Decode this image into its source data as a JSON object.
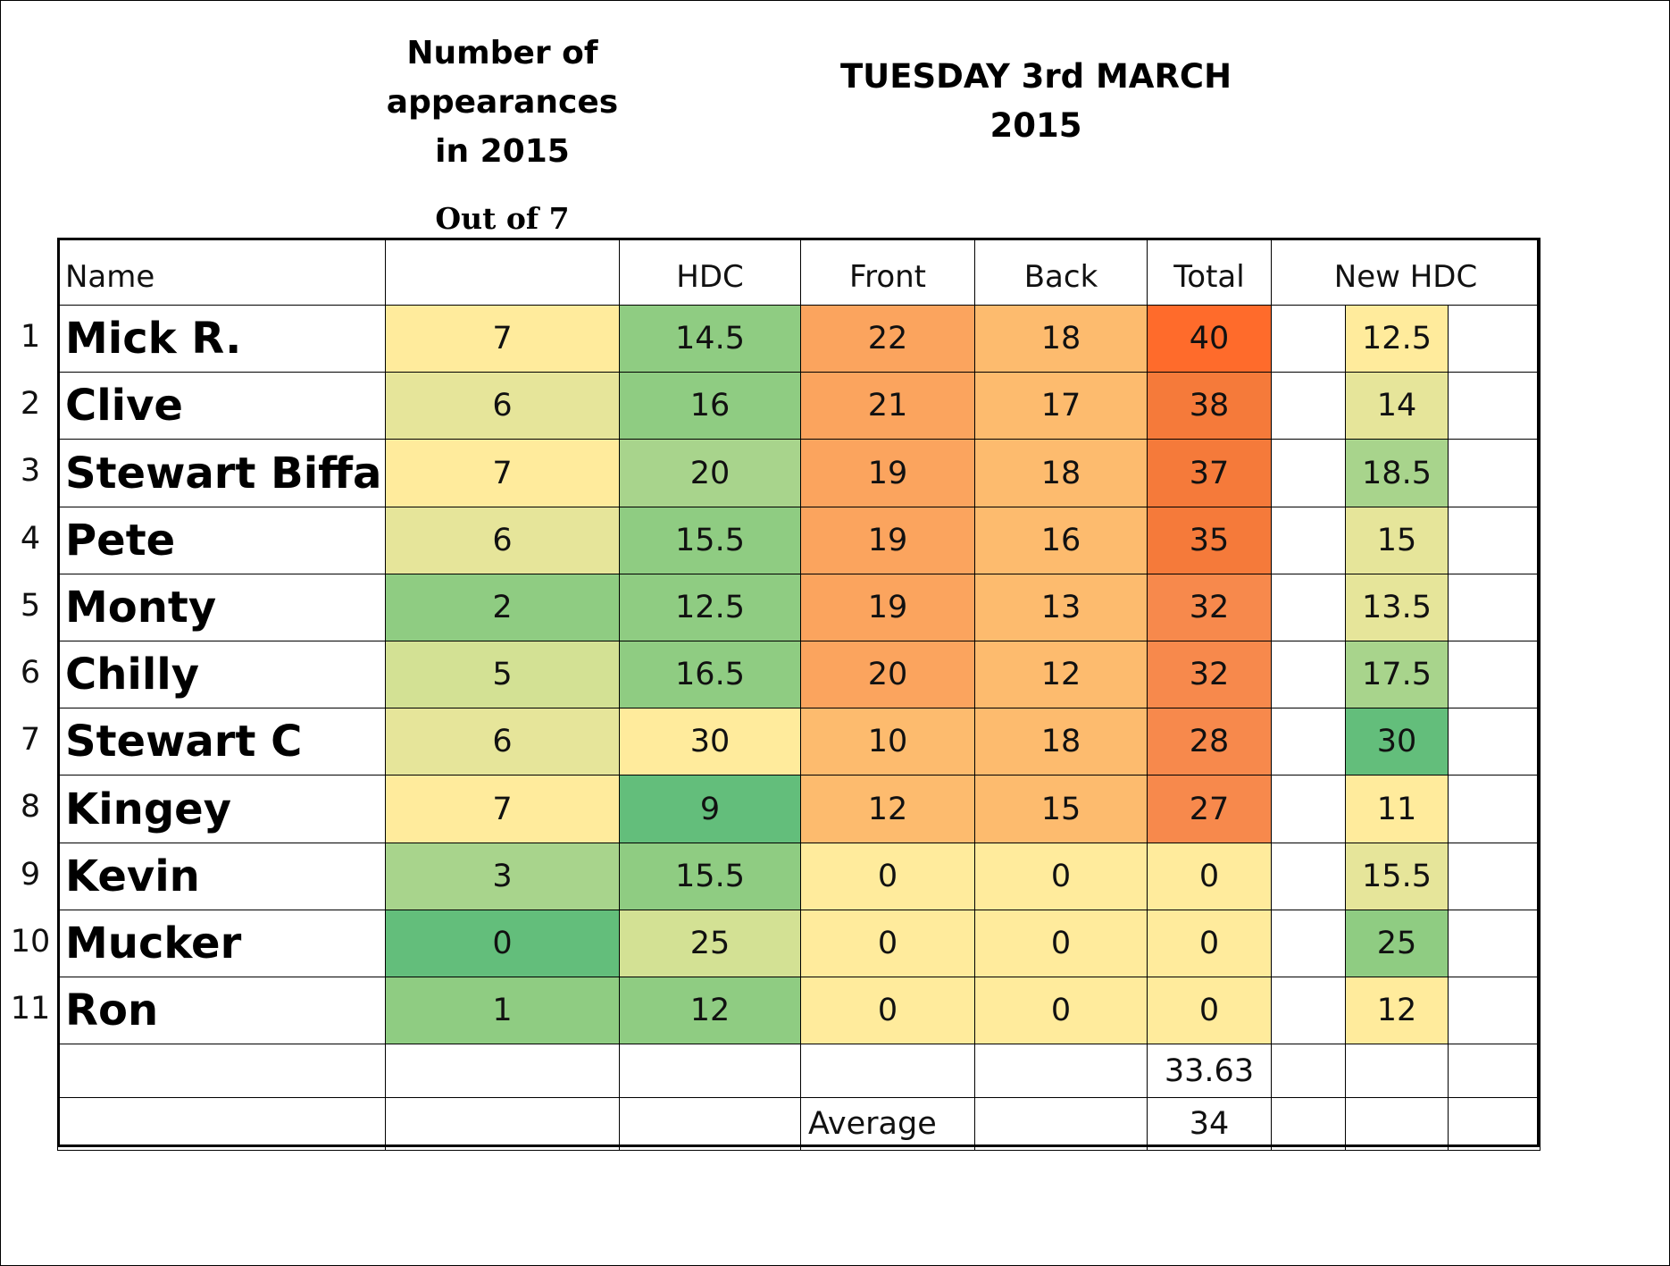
{
  "header": {
    "appearances_title_line1": "Number of",
    "appearances_title_line2": "appearances",
    "appearances_title_line3": "in 2015",
    "out_of": "Out of 7",
    "date_line1": "TUESDAY 3rd MARCH",
    "date_line2": "2015"
  },
  "columns": [
    "Name",
    "",
    "HDC",
    "Front",
    "Back",
    "Total",
    "New HDC"
  ],
  "rows": [
    {
      "num": "1",
      "name": "Mick R.",
      "apps": "7",
      "hdc": "14.5",
      "front": "22",
      "back": "18",
      "total": "40",
      "new_hdc": "12.5"
    },
    {
      "num": "2",
      "name": "Clive",
      "apps": "6",
      "hdc": "16",
      "front": "21",
      "back": "17",
      "total": "38",
      "new_hdc": "14"
    },
    {
      "num": "3",
      "name": "Stewart Biffa",
      "apps": "7",
      "hdc": "20",
      "front": "19",
      "back": "18",
      "total": "37",
      "new_hdc": "18.5"
    },
    {
      "num": "4",
      "name": "Pete",
      "apps": "6",
      "hdc": "15.5",
      "front": "19",
      "back": "16",
      "total": "35",
      "new_hdc": "15"
    },
    {
      "num": "5",
      "name": "Monty",
      "apps": "2",
      "hdc": "12.5",
      "front": "19",
      "back": "13",
      "total": "32",
      "new_hdc": "13.5"
    },
    {
      "num": "6",
      "name": "Chilly",
      "apps": "5",
      "hdc": "16.5",
      "front": "20",
      "back": "12",
      "total": "32",
      "new_hdc": "17.5"
    },
    {
      "num": "7",
      "name": "Stewart C",
      "apps": "6",
      "hdc": "30",
      "front": "10",
      "back": "18",
      "total": "28",
      "new_hdc": "30"
    },
    {
      "num": "8",
      "name": "Kingey",
      "apps": "7",
      "hdc": "9",
      "front": "12",
      "back": "15",
      "total": "27",
      "new_hdc": "11"
    },
    {
      "num": "9",
      "name": "Kevin",
      "apps": "3",
      "hdc": "15.5",
      "front": "0",
      "back": "0",
      "total": "0",
      "new_hdc": "15.5"
    },
    {
      "num": "10",
      "name": "Mucker",
      "apps": "0",
      "hdc": "25",
      "front": "0",
      "back": "0",
      "total": "0",
      "new_hdc": "25"
    },
    {
      "num": "11",
      "name": "Ron",
      "apps": "1",
      "hdc": "12",
      "front": "0",
      "back": "0",
      "total": "0",
      "new_hdc": "12"
    }
  ],
  "summary": {
    "total_mean": "33.63",
    "average_label": "Average",
    "average_value": "34"
  },
  "colors": {
    "yellow": "#FFEB9C",
    "light_yellow_green": "#E6E59A",
    "yellow_green": "#D3E194",
    "light_green": "#A8D48C",
    "green": "#8FCC82",
    "dark_green": "#63BE7B",
    "light_orange": "#FDBB6E",
    "orange": "#FBA45E",
    "dark_orange": "#F7894C",
    "red_orange": "#F57A3A",
    "deep_orange": "#FF6B2B"
  }
}
